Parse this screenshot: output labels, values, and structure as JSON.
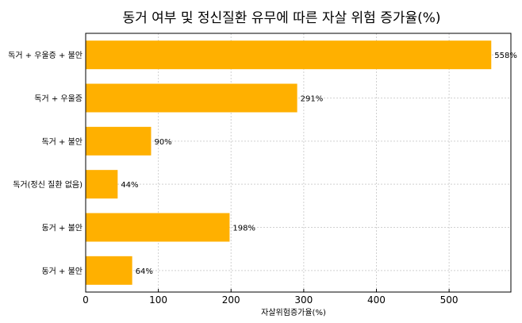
{
  "chart_data": {
    "type": "bar",
    "orientation": "horizontal",
    "title": "동거 여부 및 정신질환 유무에 따른 자살 위험 증가율(%)",
    "xlabel": "자살위험증가율(%)",
    "ylabel": "",
    "categories": [
      "독거 + 우울증 + 불안",
      "독거 + 우울증",
      "독거 + 불안",
      "독거(정신 질환 없음)",
      "동거 + 불안",
      "동거 + 불안"
    ],
    "values": [
      558,
      291,
      90,
      44,
      198,
      64
    ],
    "data_labels": [
      "558%",
      "291%",
      "90%",
      "44%",
      "198%",
      "64%"
    ],
    "xlim": [
      0,
      585
    ],
    "xticks": [
      0,
      100,
      200,
      300,
      400,
      500
    ],
    "grid": true,
    "bar_color": "#ffb000",
    "grid_color": "#d0d0d0"
  }
}
